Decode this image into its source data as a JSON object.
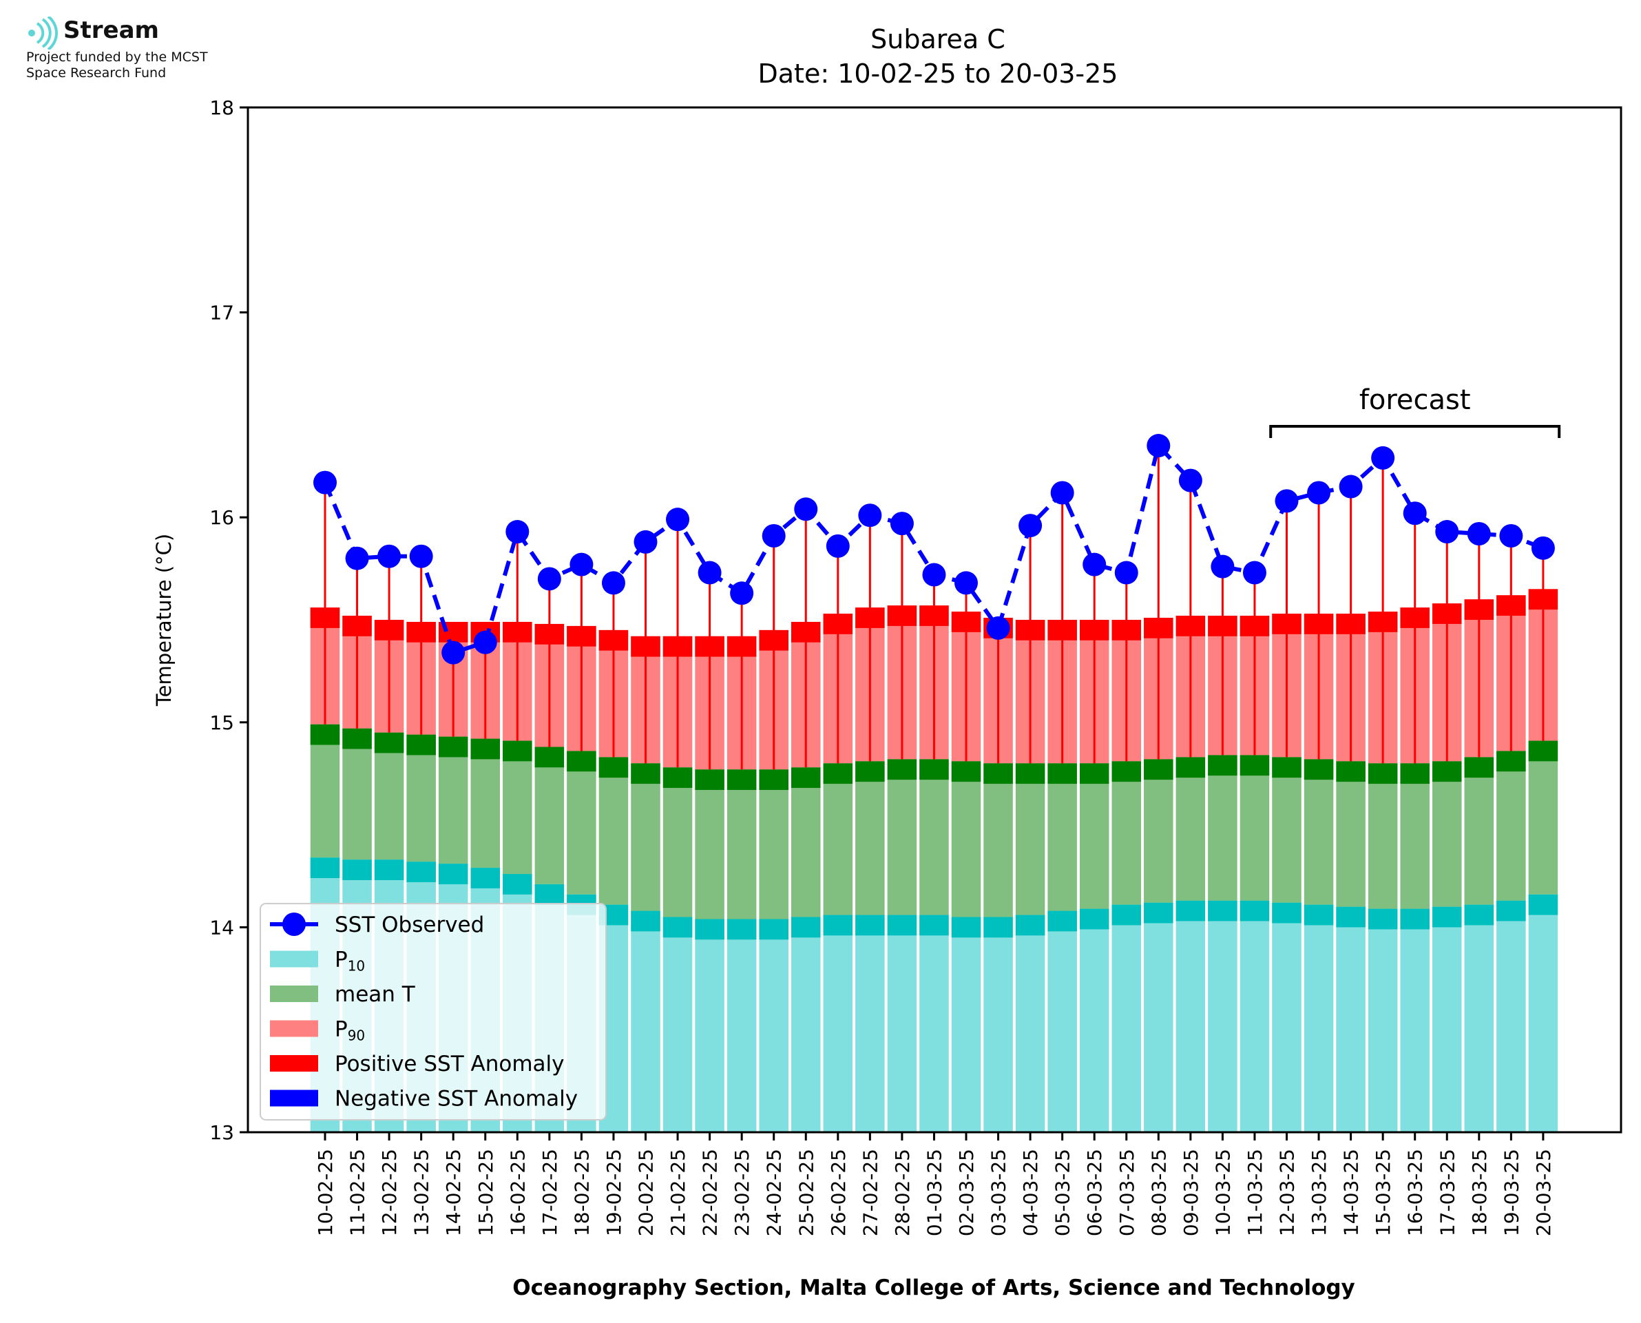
{
  "logo": {
    "name": "Stream",
    "line1": "Project funded by the MCST",
    "line2": "Space Research Fund",
    "icon": "stream-waves-icon"
  },
  "chart_data": {
    "type": "bar",
    "title": "Subarea C",
    "subtitle": "Date: 10-02-25 to 20-03-25",
    "ylabel": "Temperature (°C)",
    "xlabel": "Oceanography Section, Malta College of Arts, Science and Technology",
    "ylim": [
      13,
      18
    ],
    "yticks": [
      13,
      14,
      15,
      16,
      17,
      18
    ],
    "forecast_label": "forecast",
    "forecast_range": [
      "12-03-25",
      "20-03-25"
    ],
    "legend_position": "lower-left",
    "legend": [
      {
        "key": "sst",
        "label": "SST Observed",
        "sub": "",
        "color": "#0000ff"
      },
      {
        "key": "p10",
        "label": "P",
        "sub": "10",
        "color": "#80dfdf"
      },
      {
        "key": "mean",
        "label": "mean T",
        "sub": "",
        "color": "#80bf80"
      },
      {
        "key": "p90",
        "label": "P",
        "sub": "90",
        "color": "#ff8080"
      },
      {
        "key": "pos",
        "label": "Positive SST Anomaly",
        "sub": "",
        "color": "#ff0000"
      },
      {
        "key": "neg",
        "label": "Negative SST Anomaly",
        "sub": "",
        "color": "#0000ff"
      }
    ],
    "colors": {
      "p10": "#80dfdf",
      "p10_band": "#00bfbf",
      "mean": "#80bf80",
      "mean_band": "#008000",
      "p90": "#ff8080",
      "p90_band": "#ff0000",
      "sst": "#0000ff",
      "anomaly_line": "#ff0000"
    },
    "categories": [
      "10-02-25",
      "11-02-25",
      "12-02-25",
      "13-02-25",
      "14-02-25",
      "15-02-25",
      "16-02-25",
      "17-02-25",
      "18-02-25",
      "19-02-25",
      "20-02-25",
      "21-02-25",
      "22-02-25",
      "23-02-25",
      "24-02-25",
      "25-02-25",
      "26-02-25",
      "27-02-25",
      "28-02-25",
      "01-03-25",
      "02-03-25",
      "03-03-25",
      "04-03-25",
      "05-03-25",
      "06-03-25",
      "07-03-25",
      "08-03-25",
      "09-03-25",
      "10-03-25",
      "11-03-25",
      "12-03-25",
      "13-03-25",
      "14-03-25",
      "15-03-25",
      "16-03-25",
      "17-03-25",
      "18-03-25",
      "19-03-25",
      "20-03-25"
    ],
    "series": [
      {
        "name": "P10",
        "values": [
          14.34,
          14.33,
          14.33,
          14.32,
          14.31,
          14.29,
          14.26,
          14.21,
          14.16,
          14.11,
          14.08,
          14.05,
          14.04,
          14.04,
          14.04,
          14.05,
          14.06,
          14.06,
          14.06,
          14.06,
          14.05,
          14.05,
          14.06,
          14.08,
          14.09,
          14.11,
          14.12,
          14.13,
          14.13,
          14.13,
          14.12,
          14.11,
          14.1,
          14.09,
          14.09,
          14.1,
          14.11,
          14.13,
          14.16
        ]
      },
      {
        "name": "mean T",
        "values": [
          14.99,
          14.97,
          14.95,
          14.94,
          14.93,
          14.92,
          14.91,
          14.88,
          14.86,
          14.83,
          14.8,
          14.78,
          14.77,
          14.77,
          14.77,
          14.78,
          14.8,
          14.81,
          14.82,
          14.82,
          14.81,
          14.8,
          14.8,
          14.8,
          14.8,
          14.81,
          14.82,
          14.83,
          14.84,
          14.84,
          14.83,
          14.82,
          14.81,
          14.8,
          14.8,
          14.81,
          14.83,
          14.86,
          14.91
        ]
      },
      {
        "name": "P90",
        "values": [
          15.56,
          15.52,
          15.5,
          15.49,
          15.49,
          15.49,
          15.49,
          15.48,
          15.47,
          15.45,
          15.42,
          15.42,
          15.42,
          15.42,
          15.45,
          15.49,
          15.53,
          15.56,
          15.57,
          15.57,
          15.54,
          15.51,
          15.5,
          15.5,
          15.5,
          15.5,
          15.51,
          15.52,
          15.52,
          15.52,
          15.53,
          15.53,
          15.53,
          15.54,
          15.56,
          15.58,
          15.6,
          15.62,
          15.65
        ]
      },
      {
        "name": "SST Observed",
        "values": [
          16.17,
          15.8,
          15.81,
          15.81,
          15.34,
          15.39,
          15.93,
          15.7,
          15.77,
          15.68,
          15.88,
          15.99,
          15.73,
          15.63,
          15.91,
          16.04,
          15.86,
          16.01,
          15.97,
          15.72,
          15.68,
          15.46,
          15.96,
          16.12,
          15.77,
          15.73,
          16.35,
          16.18,
          15.76,
          15.73,
          16.08,
          16.12,
          16.15,
          16.29,
          16.02,
          15.93,
          15.92,
          15.91,
          15.85
        ]
      }
    ]
  }
}
